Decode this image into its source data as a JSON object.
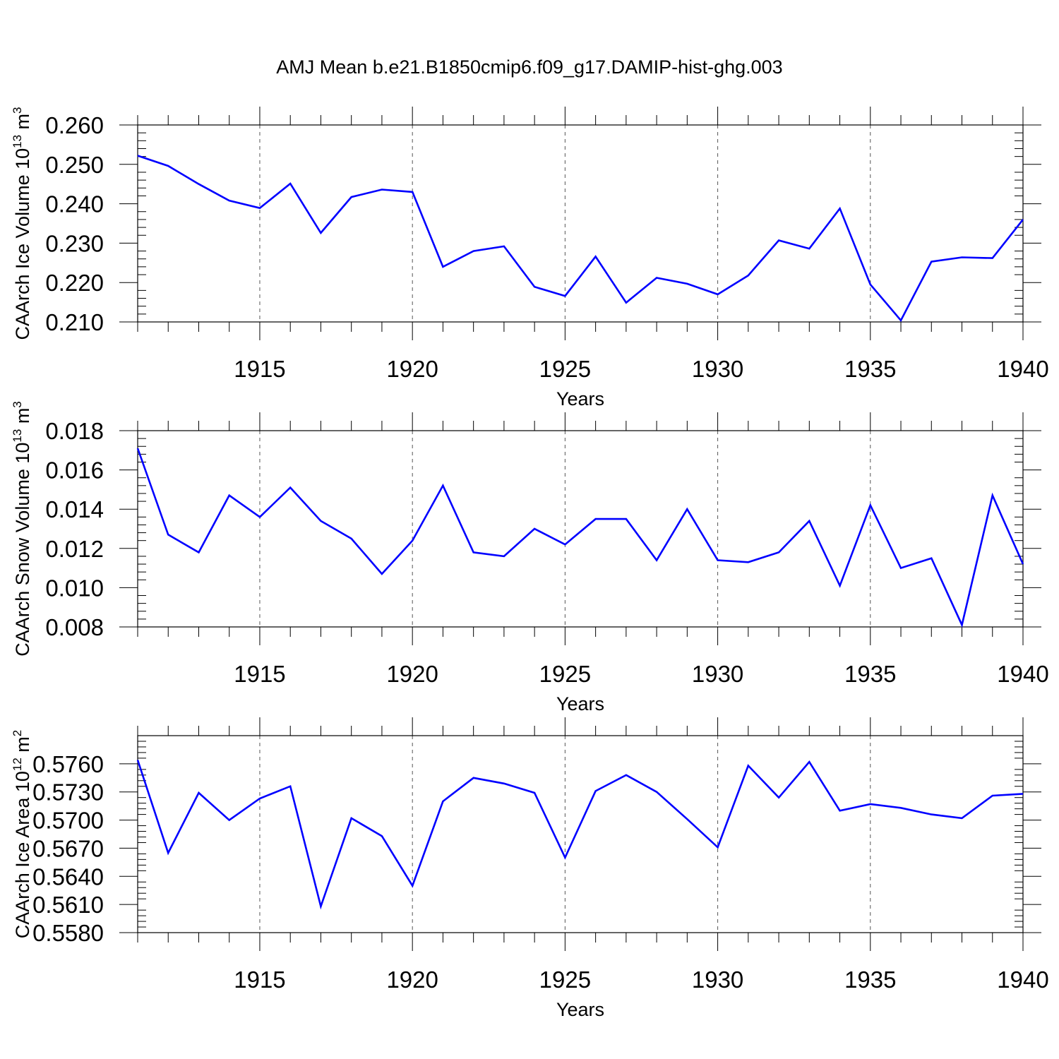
{
  "title": "AMJ Mean b.e21.B1850cmip6.f09_g17.DAMIP-hist-ghg.003",
  "chart_data": [
    {
      "type": "line",
      "title": "AMJ Mean b.e21.B1850cmip6.f09_g17.DAMIP-hist-ghg.003",
      "ylabel_main": "CAArch Ice Volume 10",
      "ylabel_exp": "13",
      "ylabel_unit": "m",
      "ylabel_unit_exp": "3",
      "xlabel": "Years",
      "xlim": [
        1911,
        1940
      ],
      "ylim": [
        0.21,
        0.26
      ],
      "yticks": [
        0.21,
        0.22,
        0.23,
        0.24,
        0.25,
        0.26
      ],
      "ytick_labels": [
        "0.210",
        "0.220",
        "0.230",
        "0.240",
        "0.250",
        "0.260"
      ],
      "xticks": [
        1915,
        1920,
        1925,
        1930,
        1935,
        1940
      ],
      "xtick_labels": [
        "1915",
        "1920",
        "1925",
        "1930",
        "1935",
        "1940"
      ],
      "line_color": "#0000ff",
      "x": [
        1911,
        1912,
        1913,
        1914,
        1915,
        1916,
        1917,
        1918,
        1919,
        1920,
        1921,
        1922,
        1923,
        1924,
        1925,
        1926,
        1927,
        1928,
        1929,
        1930,
        1931,
        1932,
        1933,
        1934,
        1935,
        1936,
        1937,
        1938,
        1939,
        1940
      ],
      "values": [
        0.2522,
        0.2496,
        0.245,
        0.2408,
        0.2389,
        0.2451,
        0.2326,
        0.2417,
        0.2436,
        0.243,
        0.224,
        0.228,
        0.2292,
        0.2189,
        0.2166,
        0.2266,
        0.2149,
        0.2212,
        0.2197,
        0.217,
        0.2218,
        0.2307,
        0.2286,
        0.2388,
        0.2195,
        0.2104,
        0.2253,
        0.2264,
        0.2262,
        0.236
      ]
    },
    {
      "type": "line",
      "ylabel_main": "CAArch Snow Volume 10",
      "ylabel_exp": "13",
      "ylabel_unit": "m",
      "ylabel_unit_exp": "3",
      "xlabel": "Years",
      "xlim": [
        1911,
        1940
      ],
      "ylim": [
        0.008,
        0.018
      ],
      "yticks": [
        0.008,
        0.01,
        0.012,
        0.014,
        0.016,
        0.018
      ],
      "ytick_labels": [
        "0.008",
        "0.010",
        "0.012",
        "0.014",
        "0.016",
        "0.018"
      ],
      "xticks": [
        1915,
        1920,
        1925,
        1930,
        1935,
        1940
      ],
      "xtick_labels": [
        "1915",
        "1920",
        "1925",
        "1930",
        "1935",
        "1940"
      ],
      "line_color": "#0000ff",
      "x": [
        1911,
        1912,
        1913,
        1914,
        1915,
        1916,
        1917,
        1918,
        1919,
        1920,
        1921,
        1922,
        1923,
        1924,
        1925,
        1926,
        1927,
        1928,
        1929,
        1930,
        1931,
        1932,
        1933,
        1934,
        1935,
        1936,
        1937,
        1938,
        1939,
        1940
      ],
      "values": [
        0.0171,
        0.0127,
        0.0118,
        0.0147,
        0.0136,
        0.0151,
        0.0134,
        0.0125,
        0.0107,
        0.0124,
        0.0152,
        0.0118,
        0.0116,
        0.013,
        0.0122,
        0.0135,
        0.0135,
        0.0114,
        0.014,
        0.0114,
        0.0113,
        0.0118,
        0.0134,
        0.0101,
        0.0142,
        0.011,
        0.0115,
        0.0081,
        0.0147,
        0.0112
      ]
    },
    {
      "type": "line",
      "ylabel_main": "CAArch Ice Area 10",
      "ylabel_exp": "12",
      "ylabel_unit": "m",
      "ylabel_unit_exp": "2",
      "xlabel": "Years",
      "xlim": [
        1911,
        1940
      ],
      "ylim": [
        0.558,
        0.579
      ],
      "yticks": [
        0.558,
        0.561,
        0.564,
        0.567,
        0.57,
        0.573,
        0.576
      ],
      "ytick_labels": [
        "0.5580",
        "0.5610",
        "0.5640",
        "0.5670",
        "0.5700",
        "0.5730",
        "0.5760"
      ],
      "xticks": [
        1915,
        1920,
        1925,
        1930,
        1935,
        1940
      ],
      "xtick_labels": [
        "1915",
        "1920",
        "1925",
        "1930",
        "1935",
        "1940"
      ],
      "line_color": "#0000ff",
      "x": [
        1911,
        1912,
        1913,
        1914,
        1915,
        1916,
        1917,
        1918,
        1919,
        1920,
        1921,
        1922,
        1923,
        1924,
        1925,
        1926,
        1927,
        1928,
        1929,
        1930,
        1931,
        1932,
        1933,
        1934,
        1935,
        1936,
        1937,
        1938,
        1939,
        1940
      ],
      "values": [
        0.5764,
        0.5665,
        0.5729,
        0.57,
        0.5723,
        0.5736,
        0.5608,
        0.5702,
        0.5683,
        0.563,
        0.572,
        0.5745,
        0.5739,
        0.5729,
        0.566,
        0.5731,
        0.5748,
        0.573,
        0.5701,
        0.5671,
        0.5758,
        0.5724,
        0.5762,
        0.571,
        0.5717,
        0.5713,
        0.5706,
        0.5702,
        0.5726,
        0.5728
      ]
    }
  ]
}
